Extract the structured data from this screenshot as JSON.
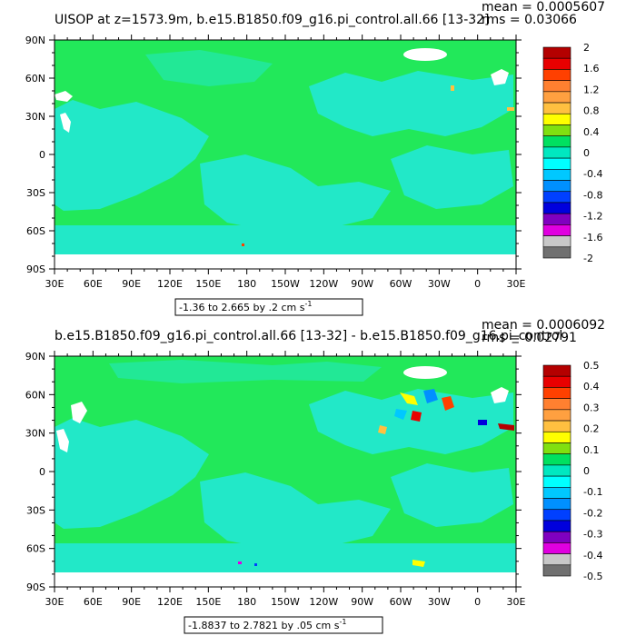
{
  "chart_data": [
    {
      "type": "heatmap",
      "title": "UISOP at z=1573.9m, b.e15.B1850.f09_g16.pi_control.all.66 [13-32]",
      "stats": {
        "mean": "mean = 0.0005607",
        "rms": "rms = 0.03066"
      },
      "x_tick_labels": [
        "30E",
        "60E",
        "90E",
        "120E",
        "150E",
        "180",
        "150W",
        "120W",
        "90W",
        "60W",
        "30W",
        "0",
        "30E"
      ],
      "y_tick_labels": [
        "90N",
        "60N",
        "30N",
        "0",
        "30S",
        "60S",
        "90S"
      ],
      "colorbar_labels": [
        "2",
        "1.6",
        "1.2",
        "0.8",
        "0.4",
        "0",
        "-0.4",
        "-0.8",
        "-1.2",
        "-1.6",
        "-2"
      ],
      "range_label": "-1.36 to 2.665 by .2 cm s",
      "range_unit_exp": "-1",
      "dominant_bin_value": 0.0
    },
    {
      "type": "heatmap",
      "title": "b.e15.B1850.f09_g16.pi_control.all.66 [13-32] - b.e15.B1850.f09_g16.pi_control",
      "stats": {
        "mean": "mean = 0.0006092",
        "rms": "rms = 0.02791"
      },
      "x_tick_labels": [
        "30E",
        "60E",
        "90E",
        "120E",
        "150E",
        "180",
        "150W",
        "120W",
        "90W",
        "60W",
        "30W",
        "0",
        "30E"
      ],
      "y_tick_labels": [
        "90N",
        "60N",
        "30N",
        "0",
        "30S",
        "60S",
        "90S"
      ],
      "colorbar_labels": [
        "0.5",
        "0.4",
        "0.3",
        "0.2",
        "0.1",
        "0",
        "-0.1",
        "-0.2",
        "-0.3",
        "-0.4",
        "-0.5"
      ],
      "range_label": "-1.8837 to 2.7821 by .05 cm s",
      "range_unit_exp": "-1",
      "dominant_bin_value": 0.0
    }
  ],
  "colors": {
    "colorbar": [
      "#b40000",
      "#e80000",
      "#ff4000",
      "#ff8030",
      "#ffa040",
      "#ffc040",
      "#ffff00",
      "#80e010",
      "#00e060",
      "#00e8c0",
      "#00ffff",
      "#00c8ff",
      "#0090ff",
      "#0040ff",
      "#0000dd",
      "#8000c0",
      "#e000e0",
      "#c8c8c8",
      "#707070"
    ],
    "field_main": "#22e85a",
    "field_light": "#22e8c8",
    "land": "#ffffff"
  }
}
